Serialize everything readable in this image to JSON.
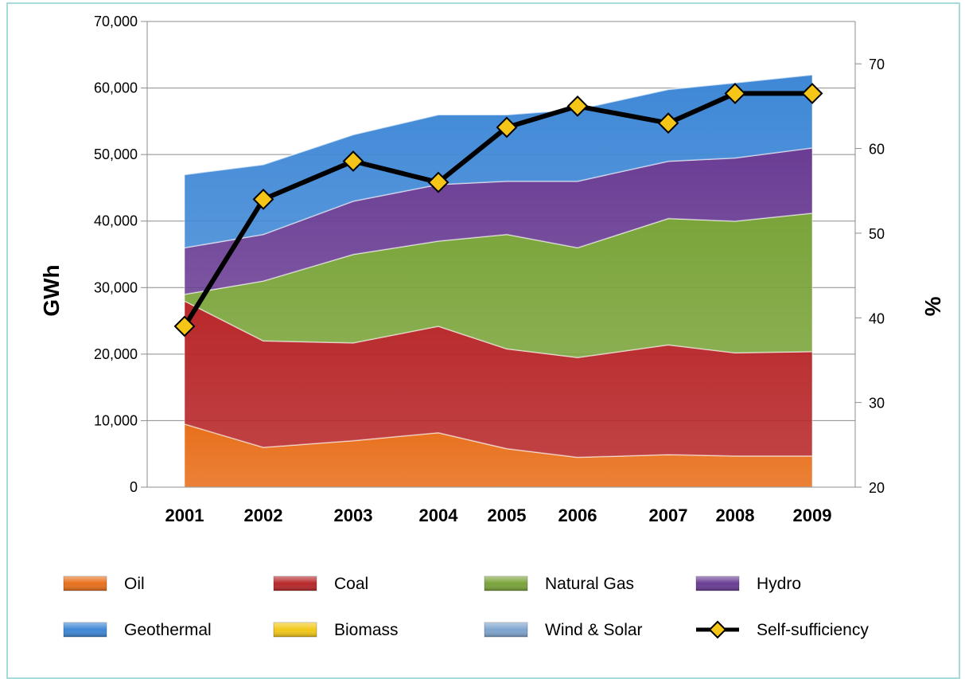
{
  "chart_data": {
    "type": "area",
    "stacked": true,
    "x": [
      "2001",
      "2002",
      "2003",
      "2004",
      "2005",
      "2006",
      "2007",
      "2008",
      "2009"
    ],
    "ylabel": "GWh",
    "y2label": "%",
    "ylim": [
      0,
      70000
    ],
    "y2lim": [
      20,
      75
    ],
    "yticks": [
      "0",
      "10,000",
      "20,000",
      "30,000",
      "40,000",
      "50,000",
      "60,000",
      "70,000"
    ],
    "y2ticks": [
      "20",
      "30",
      "40",
      "50",
      "60",
      "70"
    ],
    "grid": true,
    "legend_position": "bottom",
    "series": [
      {
        "name": "Oil",
        "color": "#e8701c",
        "values": [
          9500,
          6000,
          7000,
          8200,
          5800,
          4500,
          4900,
          4700,
          4700
        ]
      },
      {
        "name": "Coal",
        "color": "#b8282a",
        "values": [
          18500,
          16000,
          14700,
          16000,
          15000,
          15000,
          16500,
          15500,
          15700
        ]
      },
      {
        "name": "Natural Gas",
        "color": "#7aa43a",
        "values": [
          1000,
          9000,
          13300,
          12800,
          17200,
          16500,
          19000,
          19800,
          20800
        ]
      },
      {
        "name": "Hydro",
        "color": "#6a3d94",
        "values": [
          7000,
          7000,
          8000,
          8500,
          8000,
          10000,
          8600,
          9500,
          9800
        ]
      },
      {
        "name": "Geothermal",
        "color": "#3f88d6",
        "values": [
          11000,
          10500,
          10000,
          10500,
          10000,
          10800,
          10800,
          11300,
          11000
        ]
      },
      {
        "name": "Biomass",
        "color": "#f2c81a",
        "values": [
          0,
          0,
          0,
          0,
          0,
          0,
          0,
          0,
          0
        ]
      },
      {
        "name": "Wind & Solar",
        "color": "#7fa5cf",
        "values": [
          0,
          0,
          0,
          0,
          0,
          0,
          0,
          0,
          0
        ]
      }
    ],
    "line_series": {
      "name": "Self-sufficiency",
      "axis": "right",
      "color": "#000000",
      "marker_color": "#f5c518",
      "values": [
        39,
        54,
        58.5,
        56,
        62.5,
        65,
        63,
        66.5,
        66.5
      ]
    }
  },
  "legend": {
    "items": [
      "Oil",
      "Coal",
      "Natural Gas",
      "Hydro",
      "Geothermal",
      "Biomass",
      "Wind & Solar",
      "Self-sufficiency"
    ]
  }
}
